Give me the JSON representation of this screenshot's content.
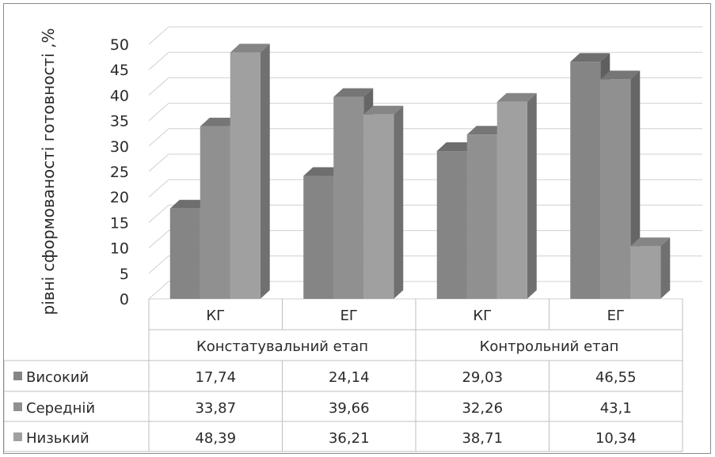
{
  "chart_data": {
    "type": "bar",
    "ylabel": "рівні сформованості готовності ,%",
    "ylim": [
      0,
      50
    ],
    "yticks": [
      0,
      5,
      10,
      15,
      20,
      25,
      30,
      35,
      40,
      45,
      50
    ],
    "categories": [
      "КГ",
      "ЕГ",
      "КГ",
      "ЕГ"
    ],
    "groups": [
      {
        "label": "Констатувальний етап",
        "span": [
          0,
          1
        ]
      },
      {
        "label": "Контрольний етап",
        "span": [
          2,
          3
        ]
      }
    ],
    "series": [
      {
        "name": "Високий",
        "values": [
          17.74,
          24.14,
          29.03,
          46.55
        ],
        "labels": [
          "17,74",
          "24,14",
          "29,03",
          "46,55"
        ]
      },
      {
        "name": "Середній",
        "values": [
          33.87,
          39.66,
          32.26,
          43.1
        ],
        "labels": [
          "33,87",
          "39,66",
          "32,26",
          "43,1"
        ]
      },
      {
        "name": "Низький",
        "values": [
          48.39,
          36.21,
          38.71,
          10.34
        ],
        "labels": [
          "48,39",
          "36,21",
          "38,71",
          "10,34"
        ]
      }
    ],
    "colors": {
      "Високий": {
        "front": "#858585",
        "side": "#5f5f5f",
        "top": "#6e6e6e"
      },
      "Середній": {
        "front": "#909090",
        "side": "#666666",
        "top": "#767676"
      },
      "Низький": {
        "front": "#a0a0a0",
        "side": "#707070",
        "top": "#858585"
      }
    },
    "grid": true,
    "view": "3d-column",
    "legend": "table-bottom"
  }
}
